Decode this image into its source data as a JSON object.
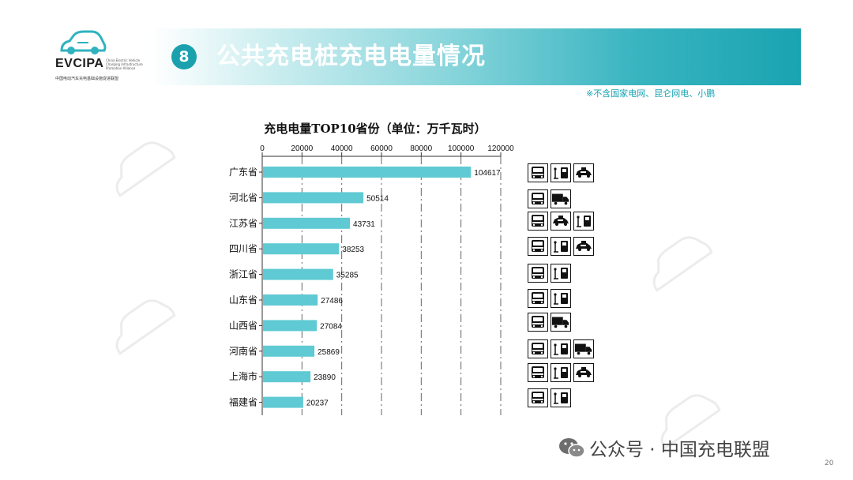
{
  "header": {
    "brand": "EVCIPA",
    "brand_sub": "China Electric Vehicle Charging Infrastructure Promotion Alliance",
    "brand_cn": "中国电动汽车充电基础设施促进联盟",
    "badge_number": "8",
    "title": "公共充电桩充电电量情况",
    "note": "※不含国家电网、昆仑网电、小鹏"
  },
  "colors": {
    "accent": "#1aa3b1",
    "bar": "#5fcad3",
    "note": "#17a3b2"
  },
  "chart_data": {
    "type": "bar",
    "orientation": "horizontal",
    "title": "充电电量TOP10省份（单位：万千瓦时）",
    "categories": [
      "广东省",
      "河北省",
      "江苏省",
      "四川省",
      "浙江省",
      "山东省",
      "山西省",
      "河南省",
      "上海市",
      "福建省"
    ],
    "values": [
      104617,
      50514,
      43731,
      38253,
      35285,
      27486,
      27084,
      25869,
      23890,
      20237
    ],
    "xlim": [
      0,
      120000
    ],
    "xticks": [
      "0",
      "20000",
      "40000",
      "60000",
      "80000",
      "100000",
      "120000"
    ],
    "axis_position": "top",
    "grid": "dashed vertical",
    "legend": "none"
  },
  "vehicle_icons": [
    [
      "bus-icon",
      "charger-icon",
      "taxi-icon"
    ],
    [
      "bus-icon",
      "truck-icon"
    ],
    [
      "bus-icon",
      "taxi-icon",
      "charger-icon"
    ],
    [
      "bus-icon",
      "charger-icon",
      "taxi-icon"
    ],
    [
      "bus-icon",
      "charger-icon"
    ],
    [
      "bus-icon",
      "charger-icon"
    ],
    [
      "bus-icon",
      "truck-icon"
    ],
    [
      "bus-icon",
      "charger-icon",
      "truck-icon"
    ],
    [
      "bus-icon",
      "charger-icon",
      "taxi-icon"
    ],
    [
      "bus-icon",
      "charger-icon"
    ]
  ],
  "footer": {
    "text": "公众号 · 中国充电联盟",
    "page_number": "20"
  }
}
